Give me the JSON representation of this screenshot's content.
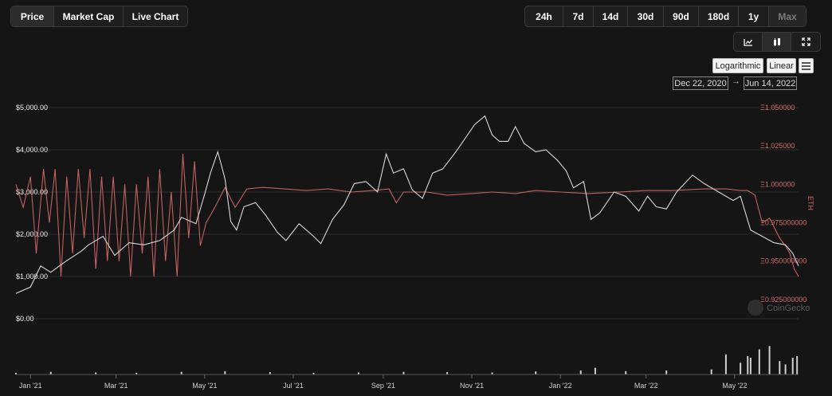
{
  "tabs": {
    "type": [
      {
        "label": "Price",
        "active": true
      },
      {
        "label": "Market Cap",
        "active": false
      },
      {
        "label": "Live Chart",
        "active": false
      }
    ],
    "range": [
      {
        "label": "24h",
        "disabled": false
      },
      {
        "label": "7d",
        "disabled": false
      },
      {
        "label": "14d",
        "disabled": false
      },
      {
        "label": "30d",
        "disabled": false
      },
      {
        "label": "90d",
        "disabled": false
      },
      {
        "label": "180d",
        "disabled": false
      },
      {
        "label": "1y",
        "disabled": false
      },
      {
        "label": "Max",
        "disabled": true
      }
    ],
    "view_icons": [
      "line-chart-icon",
      "candlestick-icon",
      "fullscreen-icon"
    ]
  },
  "scale": {
    "log_label": "Logarithmic",
    "linear_label": "Linear"
  },
  "date_range": {
    "from": "Dec 22, 2020",
    "arrow": "→",
    "to": "Jun 14, 2022"
  },
  "watermark": "CoinGecko",
  "chart_data": {
    "type": "line",
    "y_axis_left": {
      "ticks": [
        "$0.00",
        "$1,000.00",
        "$2,000.00",
        "$3,000.00",
        "$4,000.00",
        "$5,000.00"
      ],
      "range": [
        0,
        5000
      ]
    },
    "y_axis_right": {
      "label": "ETH",
      "ticks": [
        "Ξ0.925000000",
        "Ξ0.950000000",
        "Ξ0.975000000",
        "Ξ1.000000",
        "Ξ1.025000",
        "Ξ1.050000"
      ],
      "range": [
        0.9125,
        1.05
      ]
    },
    "x_axis": {
      "ticks": [
        "Jan '21",
        "Mar '21",
        "May '21",
        "Jul '21",
        "Sep '21",
        "Nov '21",
        "Jan '22",
        "Mar '22",
        "May '22"
      ],
      "range": [
        "2020-12-22",
        "2022-06-14"
      ]
    },
    "colors": {
      "usd": "#d8d8d8",
      "eth": "#c06262",
      "volume": "#cfcfcf"
    },
    "series": [
      {
        "axis": "left",
        "x": [
          "2020-12-22",
          "2021-01-01",
          "2021-01-08",
          "2021-01-15",
          "2021-01-25",
          "2021-02-05",
          "2021-02-10",
          "2021-02-20",
          "2021-02-28",
          "2021-03-10",
          "2021-03-20",
          "2021-03-31",
          "2021-04-10",
          "2021-04-15",
          "2021-04-25",
          "2021-05-01",
          "2021-05-05",
          "2021-05-10",
          "2021-05-12",
          "2021-05-15",
          "2021-05-19",
          "2021-05-23",
          "2021-05-28",
          "2021-06-05",
          "2021-06-12",
          "2021-06-20",
          "2021-06-26",
          "2021-07-05",
          "2021-07-15",
          "2021-07-20",
          "2021-07-28",
          "2021-08-05",
          "2021-08-12",
          "2021-08-20",
          "2021-08-28",
          "2021-09-03",
          "2021-09-08",
          "2021-09-15",
          "2021-09-21",
          "2021-09-28",
          "2021-10-05",
          "2021-10-12",
          "2021-10-21",
          "2021-10-28",
          "2021-11-03",
          "2021-11-10",
          "2021-11-15",
          "2021-11-20",
          "2021-11-26",
          "2021-12-01",
          "2021-12-07",
          "2021-12-15",
          "2021-12-22",
          "2021-12-30",
          "2022-01-05",
          "2022-01-10",
          "2022-01-17",
          "2022-01-22",
          "2022-01-28",
          "2022-02-07",
          "2022-02-15",
          "2022-02-24",
          "2022-03-02",
          "2022-03-08",
          "2022-03-15",
          "2022-03-22",
          "2022-04-02",
          "2022-04-10",
          "2022-04-20",
          "2022-04-30",
          "2022-05-05",
          "2022-05-12",
          "2022-05-20",
          "2022-05-28",
          "2022-06-05",
          "2022-06-10",
          "2022-06-14"
        ],
        "y": [
          600,
          750,
          1250,
          1100,
          1350,
          1600,
          1750,
          1950,
          1500,
          1800,
          1750,
          1850,
          2100,
          2400,
          2250,
          2950,
          3450,
          3950,
          3700,
          3300,
          2300,
          2100,
          2650,
          2750,
          2450,
          2050,
          1850,
          2250,
          1950,
          1780,
          2350,
          2700,
          3200,
          3250,
          3000,
          3900,
          3450,
          3550,
          3050,
          2850,
          3450,
          3550,
          3950,
          4300,
          4600,
          4800,
          4350,
          4200,
          4200,
          4550,
          4150,
          3950,
          4000,
          3750,
          3500,
          3100,
          3250,
          2350,
          2500,
          3000,
          2900,
          2550,
          2900,
          2650,
          2600,
          3000,
          3400,
          3200,
          3000,
          2800,
          2900,
          2100,
          1950,
          1800,
          1750,
          1550,
          1250
        ]
      },
      {
        "axis": "right",
        "x": [
          "2020-12-22",
          "2020-12-27",
          "2021-01-01",
          "2021-01-05",
          "2021-01-10",
          "2021-01-14",
          "2021-01-18",
          "2021-01-22",
          "2021-01-26",
          "2021-01-30",
          "2021-02-03",
          "2021-02-07",
          "2021-02-11",
          "2021-02-15",
          "2021-02-19",
          "2021-02-23",
          "2021-02-27",
          "2021-03-03",
          "2021-03-07",
          "2021-03-11",
          "2021-03-15",
          "2021-03-19",
          "2021-03-23",
          "2021-03-27",
          "2021-03-31",
          "2021-04-04",
          "2021-04-08",
          "2021-04-12",
          "2021-04-16",
          "2021-04-20",
          "2021-04-24",
          "2021-04-28",
          "2021-05-02",
          "2021-05-08",
          "2021-05-15",
          "2021-05-22",
          "2021-05-30",
          "2021-06-10",
          "2021-06-25",
          "2021-07-10",
          "2021-07-25",
          "2021-08-10",
          "2021-08-25",
          "2021-09-05",
          "2021-09-10",
          "2021-09-15",
          "2021-09-20",
          "2021-10-01",
          "2021-10-15",
          "2021-11-01",
          "2021-11-15",
          "2021-12-01",
          "2021-12-15",
          "2022-01-01",
          "2022-01-20",
          "2022-02-10",
          "2022-03-01",
          "2022-03-20",
          "2022-04-10",
          "2022-04-25",
          "2022-05-05",
          "2022-05-10",
          "2022-05-15",
          "2022-05-20",
          "2022-05-25",
          "2022-06-01",
          "2022-06-05",
          "2022-06-08",
          "2022-06-11",
          "2022-06-14"
        ],
        "y": [
          1.0,
          0.985,
          1.005,
          0.955,
          1.01,
          0.975,
          1.01,
          0.94,
          1.005,
          0.955,
          1.01,
          0.965,
          1.01,
          0.945,
          1.005,
          0.95,
          1.005,
          0.95,
          1.0,
          0.94,
          1.0,
          0.955,
          1.005,
          0.94,
          1.01,
          0.95,
          0.995,
          0.94,
          1.02,
          0.965,
          1.015,
          0.96,
          0.975,
          0.985,
          0.998,
          0.985,
          0.997,
          0.998,
          0.997,
          0.996,
          0.997,
          0.995,
          0.996,
          0.997,
          0.988,
          0.995,
          0.995,
          0.995,
          0.993,
          0.994,
          0.995,
          0.994,
          0.996,
          0.995,
          0.994,
          0.995,
          0.996,
          0.996,
          0.997,
          0.997,
          0.996,
          0.996,
          0.993,
          0.975,
          0.978,
          0.965,
          0.96,
          0.955,
          0.945,
          0.94
        ]
      }
    ],
    "volume": {
      "range": [
        0,
        1
      ],
      "x": [
        "2020-12-22",
        "2021-01-15",
        "2021-02-15",
        "2021-03-15",
        "2021-04-15",
        "2021-05-15",
        "2021-06-15",
        "2021-07-15",
        "2021-08-15",
        "2021-09-15",
        "2021-10-15",
        "2021-11-15",
        "2021-12-15",
        "2022-01-15",
        "2022-01-25",
        "2022-02-15",
        "2022-03-15",
        "2022-04-15",
        "2022-04-25",
        "2022-05-05",
        "2022-05-10",
        "2022-05-12",
        "2022-05-18",
        "2022-05-25",
        "2022-06-01",
        "2022-06-05",
        "2022-06-10",
        "2022-06-13"
      ],
      "values": [
        0.05,
        0.08,
        0.06,
        0.05,
        0.08,
        0.1,
        0.07,
        0.05,
        0.06,
        0.08,
        0.07,
        0.06,
        0.09,
        0.12,
        0.2,
        0.1,
        0.12,
        0.15,
        0.6,
        0.35,
        0.55,
        0.5,
        0.75,
        0.85,
        0.4,
        0.3,
        0.5,
        0.55
      ]
    }
  }
}
